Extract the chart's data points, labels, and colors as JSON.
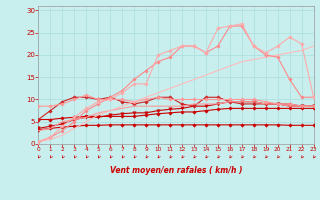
{
  "xlabel": "Vent moyen/en rafales ( km/h )",
  "bg_color": "#c8eeee",
  "grid_color": "#aadddd",
  "x_values": [
    0,
    1,
    2,
    3,
    4,
    5,
    6,
    7,
    8,
    9,
    10,
    11,
    12,
    13,
    14,
    15,
    16,
    17,
    18,
    19,
    20,
    21,
    22,
    23
  ],
  "ylim": [
    0,
    31
  ],
  "xlim": [
    0,
    23
  ],
  "lines": [
    {
      "y": [
        3.2,
        3.5,
        3.8,
        4.0,
        4.2,
        4.2,
        4.3,
        4.3,
        4.3,
        4.3,
        4.3,
        4.3,
        4.3,
        4.3,
        4.3,
        4.3,
        4.3,
        4.3,
        4.3,
        4.3,
        4.3,
        4.2,
        4.2,
        4.2
      ],
      "color": "#cc0000",
      "lw": 0.8,
      "marker": "D",
      "ms": 1.8,
      "alpha": 1.0
    },
    {
      "y": [
        5.5,
        5.5,
        5.8,
        6.0,
        6.2,
        6.2,
        6.2,
        6.2,
        6.2,
        6.5,
        6.8,
        7.0,
        7.2,
        7.2,
        7.5,
        7.8,
        8.0,
        8.0,
        8.0,
        8.0,
        8.0,
        8.0,
        8.0,
        8.0
      ],
      "color": "#cc0000",
      "lw": 0.8,
      "marker": "D",
      "ms": 1.8,
      "alpha": 1.0
    },
    {
      "y": [
        3.5,
        4.0,
        4.5,
        5.5,
        6.0,
        6.0,
        6.5,
        6.8,
        7.0,
        7.0,
        7.5,
        7.8,
        8.0,
        8.5,
        8.5,
        9.0,
        9.5,
        9.5,
        9.5,
        9.0,
        9.0,
        8.5,
        8.5,
        8.5
      ],
      "color": "#cc0000",
      "lw": 0.8,
      "marker": "v",
      "ms": 2.5,
      "alpha": 1.0
    },
    {
      "y": [
        5.5,
        7.5,
        9.5,
        10.5,
        10.5,
        10.0,
        10.5,
        9.5,
        9.0,
        9.5,
        10.5,
        10.5,
        9.0,
        8.5,
        10.5,
        10.5,
        9.5,
        9.0,
        9.0,
        9.0,
        9.0,
        9.0,
        8.5,
        8.5
      ],
      "color": "#cc2222",
      "lw": 0.8,
      "marker": "D",
      "ms": 1.8,
      "alpha": 1.0
    },
    {
      "y": [
        8.5,
        8.5,
        9.0,
        10.0,
        11.0,
        10.0,
        10.0,
        10.0,
        9.5,
        10.0,
        10.5,
        10.0,
        10.0,
        10.0,
        10.0,
        10.0,
        10.0,
        10.0,
        10.0,
        9.5,
        9.0,
        9.0,
        8.5,
        8.5
      ],
      "color": "#ff9999",
      "lw": 0.8,
      "marker": "D",
      "ms": 1.8,
      "alpha": 1.0
    },
    {
      "y": [
        3.0,
        3.5,
        5.0,
        5.5,
        6.0,
        7.0,
        7.5,
        8.0,
        8.5,
        8.5,
        8.5,
        8.5,
        8.5,
        9.0,
        9.0,
        9.0,
        9.5,
        9.5,
        9.5,
        9.0,
        9.0,
        8.5,
        8.5,
        8.5
      ],
      "color": "#ff9999",
      "lw": 0.8,
      "marker": null,
      "ms": 0,
      "alpha": 1.0
    },
    {
      "y": [
        0.5,
        1.0,
        2.0,
        3.5,
        5.0,
        6.5,
        7.5,
        8.5,
        9.5,
        10.5,
        11.5,
        12.5,
        13.5,
        14.5,
        15.5,
        16.5,
        17.5,
        18.5,
        19.0,
        19.5,
        20.0,
        20.5,
        21.0,
        22.0
      ],
      "color": "#ffbbbb",
      "lw": 0.8,
      "marker": null,
      "ms": 0,
      "alpha": 1.0
    },
    {
      "y": [
        0.5,
        1.5,
        3.0,
        5.0,
        7.5,
        9.0,
        10.5,
        12.0,
        14.5,
        16.5,
        18.5,
        19.5,
        22.0,
        22.0,
        20.5,
        22.0,
        26.5,
        26.5,
        22.0,
        20.0,
        19.5,
        14.5,
        10.5,
        10.5
      ],
      "color": "#ff8888",
      "lw": 0.8,
      "marker": "D",
      "ms": 1.8,
      "alpha": 1.0
    },
    {
      "y": [
        0.5,
        1.5,
        4.0,
        6.0,
        8.0,
        9.5,
        10.0,
        11.5,
        13.5,
        13.5,
        20.0,
        21.0,
        22.0,
        22.0,
        20.5,
        26.0,
        26.5,
        27.0,
        22.0,
        20.5,
        22.0,
        24.0,
        22.5,
        10.5
      ],
      "color": "#ffaaaa",
      "lw": 0.8,
      "marker": "D",
      "ms": 1.8,
      "alpha": 1.0
    }
  ],
  "yticks": [
    0,
    5,
    10,
    15,
    20,
    25,
    30
  ],
  "xticks": [
    0,
    1,
    2,
    3,
    4,
    5,
    6,
    7,
    8,
    9,
    10,
    11,
    12,
    13,
    14,
    15,
    16,
    17,
    18,
    19,
    20,
    21,
    22,
    23
  ],
  "tick_color": "#cc0000",
  "label_color": "#cc0000",
  "arrow_color": "#cc0000"
}
